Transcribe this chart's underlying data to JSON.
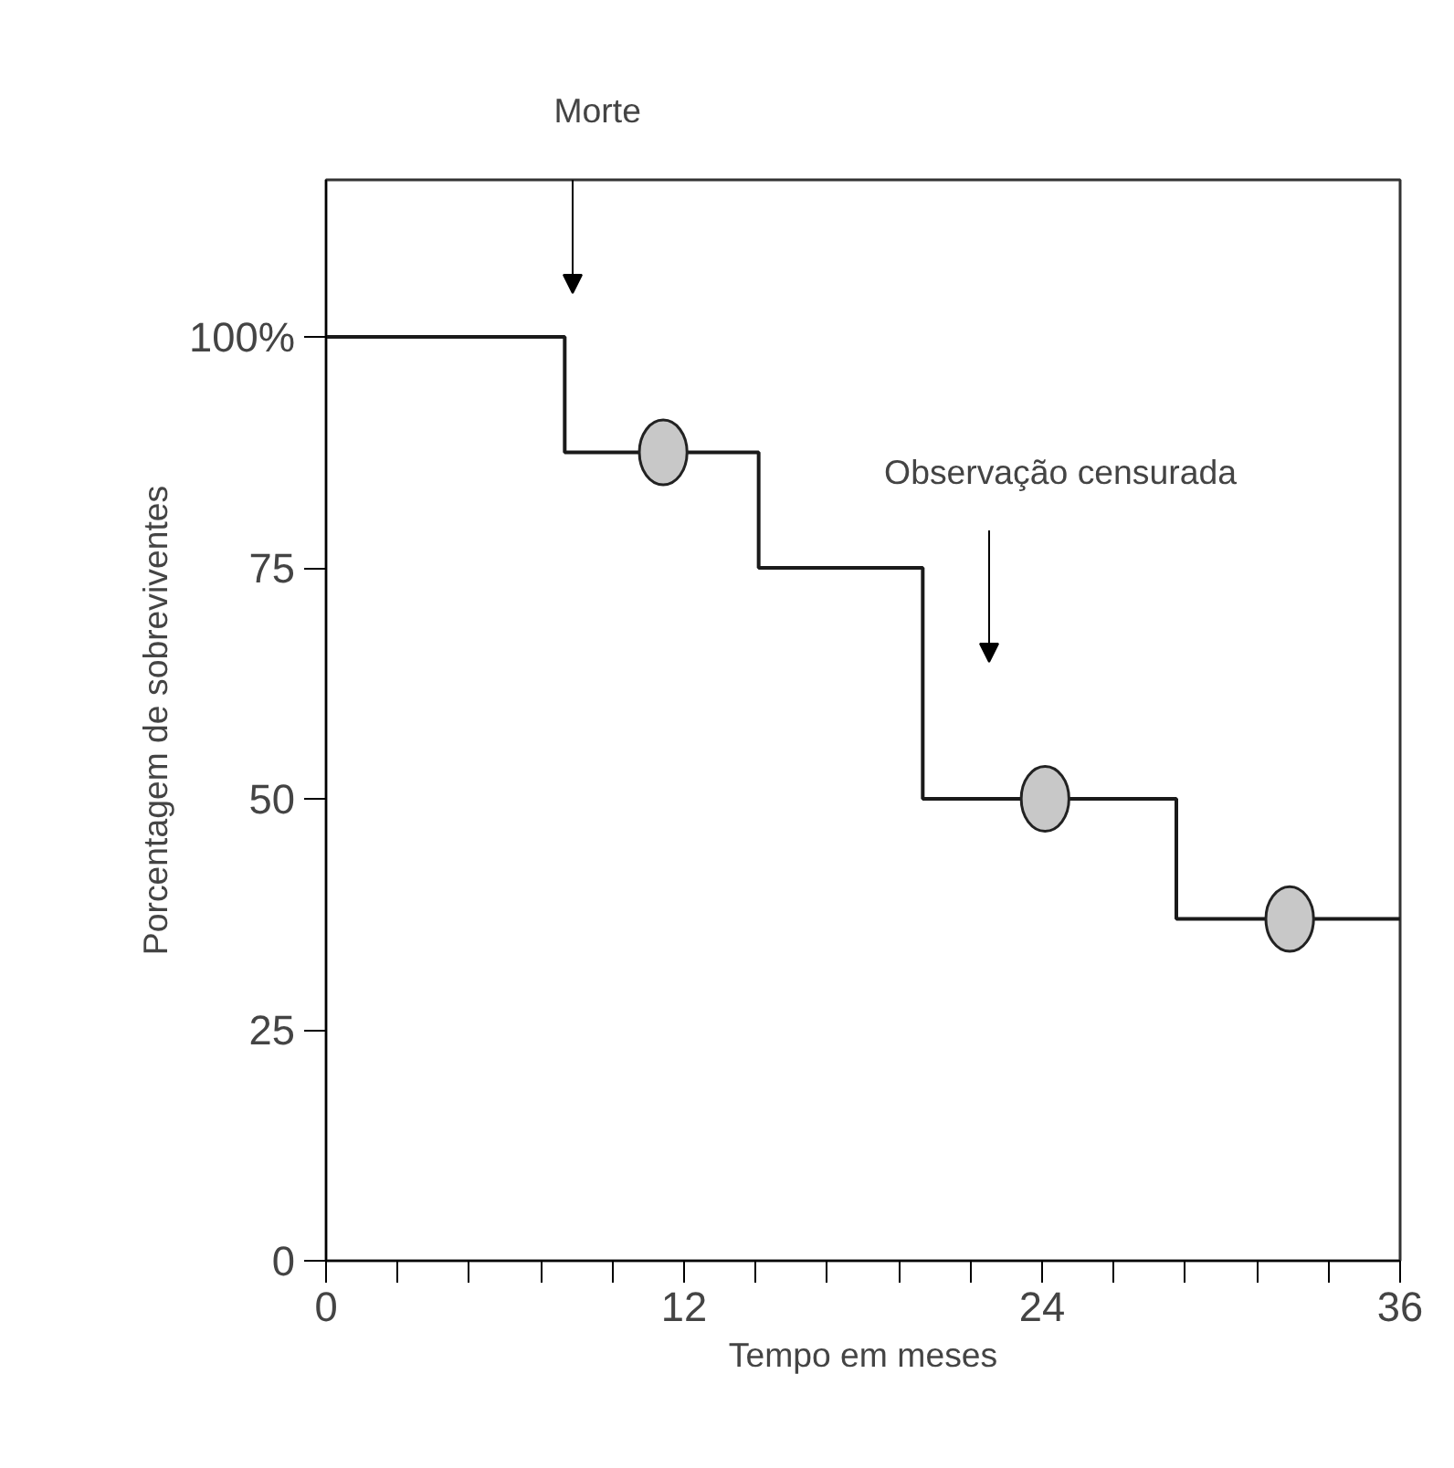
{
  "chart_data": {
    "type": "step",
    "xlabel": "Tempo em meses",
    "ylabel": "Porcentagem de sobreviventes",
    "series": [
      {
        "color": "#1a1a1a",
        "x": [
          0,
          8,
          14.5,
          20,
          28.5,
          36
        ],
        "values": [
          100,
          87.5,
          75,
          50,
          37,
          37
        ],
        "marker": "none"
      },
      {
        "type": "scatter",
        "color": "#c8c8c8",
        "x": [
          11.3,
          24.1,
          32.3
        ],
        "values": [
          87.5,
          50,
          37
        ],
        "marker": "circle"
      }
    ],
    "xlim": [
      0,
      36
    ],
    "ylim": [
      0,
      117
    ],
    "xticks": [
      0,
      {
        "value": 2.4,
        "label": null
      },
      {
        "value": 4.8,
        "label": null
      },
      {
        "value": 7.2,
        "label": null
      },
      {
        "value": 9.6,
        "label": null
      },
      12,
      {
        "value": 14.4,
        "label": null
      },
      {
        "value": 16.8,
        "label": null
      },
      {
        "value": 19.2,
        "label": null
      },
      {
        "value": 21.6,
        "label": null
      },
      24,
      {
        "value": 26.4,
        "label": null
      },
      {
        "value": 28.8,
        "label": null
      },
      {
        "value": 31.2,
        "label": null
      },
      {
        "value": 33.6,
        "label": null
      },
      36
    ],
    "yticks": [
      0,
      25,
      50,
      75,
      {
        "value": 100,
        "label": "100%"
      }
    ],
    "annotations": [
      "Morte",
      "Observação censurada"
    ],
    "grid": false
  }
}
